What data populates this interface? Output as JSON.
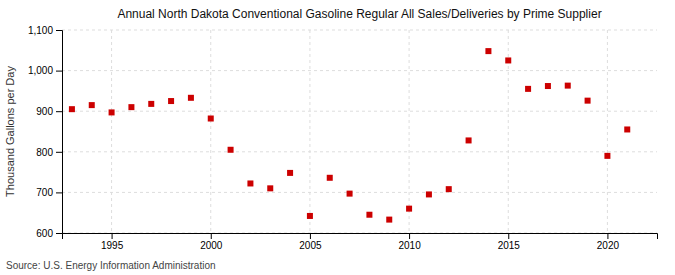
{
  "chart_data": {
    "type": "scatter",
    "title": "Annual North Dakota Conventional Gasoline Regular All Sales/Deliveries by Prime Supplier",
    "ylabel": "Thousand Gallons per Day",
    "source": "Source: U.S. Energy Information Administration",
    "x": [
      1993,
      1994,
      1995,
      1996,
      1997,
      1998,
      1999,
      2000,
      2001,
      2002,
      2003,
      2004,
      2005,
      2006,
      2007,
      2008,
      2009,
      2010,
      2011,
      2012,
      2013,
      2014,
      2015,
      2016,
      2017,
      2018,
      2019,
      2020,
      2021
    ],
    "values": [
      905,
      915,
      897,
      910,
      918,
      925,
      933,
      882,
      805,
      722,
      710,
      748,
      642,
      736,
      697,
      645,
      633,
      660,
      695,
      708,
      828,
      1048,
      1025,
      955,
      962,
      963,
      926,
      790,
      855
    ],
    "color": "#cc0000",
    "marker": "square",
    "xlim": [
      1992.5,
      2022.5
    ],
    "ylim": [
      600,
      1100
    ],
    "xticks": [
      1995,
      2000,
      2005,
      2010,
      2015,
      2020
    ],
    "yticks": [
      600,
      700,
      800,
      900,
      {
        "value": 1000,
        "label": "1,000"
      },
      {
        "value": 1100,
        "label": "1,100"
      }
    ],
    "grid": true
  }
}
